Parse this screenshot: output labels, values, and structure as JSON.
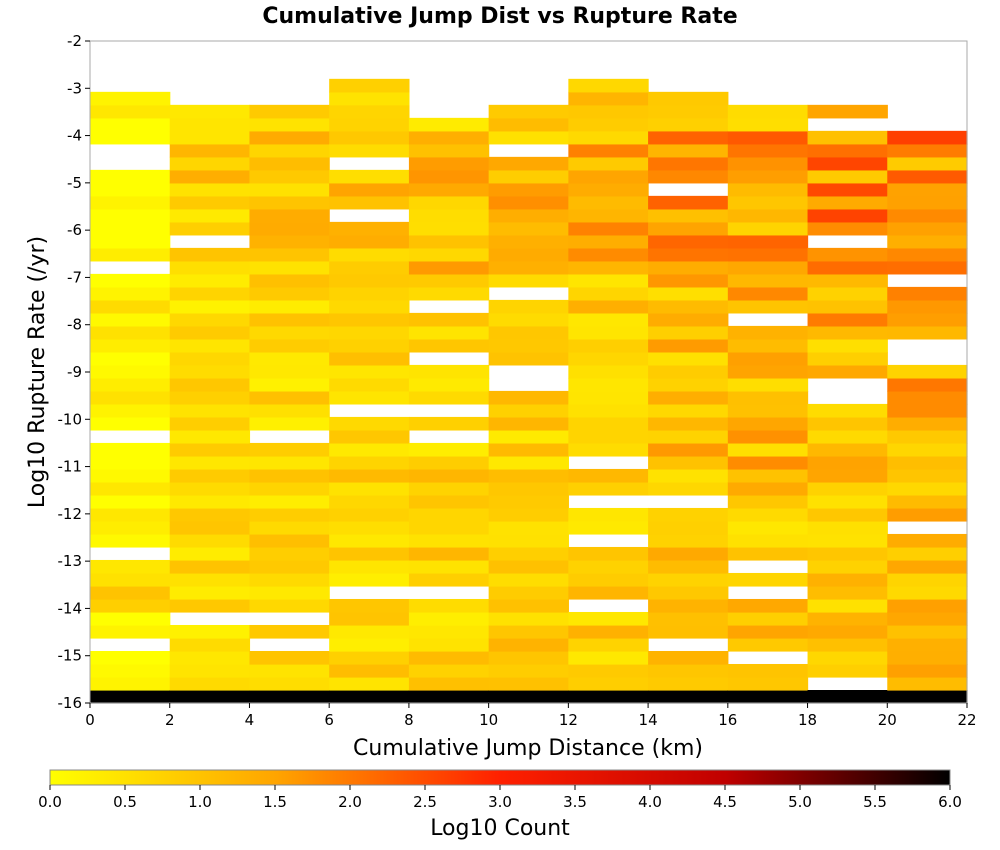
{
  "chart_data": {
    "type": "heatmap",
    "title": "Cumulative Jump Dist vs Rupture Rate",
    "xlabel": "Cumulative Jump Distance (km)",
    "ylabel": "Log10 Rupture Rate (/yr)",
    "xlim": [
      0,
      22
    ],
    "ylim": [
      -16,
      -2
    ],
    "x_bin_width": 2,
    "y_bin_height": 0.275,
    "x_ticks": [
      "0",
      "2",
      "4",
      "6",
      "8",
      "10",
      "12",
      "14",
      "16",
      "18",
      "20",
      "22"
    ],
    "y_ticks": [
      "-2",
      "-3",
      "-4",
      "-5",
      "-6",
      "-7",
      "-8",
      "-9",
      "-10",
      "-11",
      "-12",
      "-13",
      "-14",
      "-15",
      "-16"
    ],
    "grid": false,
    "colorbar": {
      "label": "Log10 Count",
      "range": [
        0.0,
        6.0
      ],
      "ticks": [
        "0.0",
        "0.5",
        "1.0",
        "1.5",
        "2.0",
        "2.5",
        "3.0",
        "3.5",
        "4.0",
        "4.5",
        "5.0",
        "5.5",
        "6.0"
      ],
      "colors": [
        "#ffff00",
        "#ffa500",
        "#ff2000",
        "#c00000",
        "#000000"
      ]
    },
    "colors": {
      "empty": "#ffffff",
      "frame": "#aaaaaa"
    },
    "columns": [
      {
        "x": [
          0,
          2
        ],
        "log10_count": [
          6.0,
          0.2,
          0.1,
          0.0,
          null,
          0.2,
          0.0,
          0.8,
          1.0,
          0.5,
          0.4,
          null,
          0.1,
          0.3,
          0.4,
          0.0,
          0.4,
          0.1,
          0.0,
          0.0,
          null,
          0.0,
          0.2,
          0.5,
          0.3,
          0.1,
          0.0,
          0.3,
          0.5,
          0.1,
          0.6,
          0.2,
          0.0,
          null,
          0.3,
          0.0,
          0.0,
          0.0,
          0.2,
          0.0,
          0.0,
          null,
          null,
          0.0,
          0.0,
          0.4,
          0.2,
          0.1,
          0.0,
          0.0,
          0.1,
          0.0,
          0.4,
          0.3,
          0.1,
          0.2,
          0.4,
          0.2,
          0.1,
          0.6,
          0.6,
          0.8,
          0.6,
          0.5,
          0.4,
          0.4,
          0.2,
          null,
          null,
          null,
          0.3,
          0.2,
          0.0,
          null,
          null,
          null,
          null,
          0.0,
          0.5,
          0.6,
          0.3,
          0.2,
          0.1,
          0.4,
          0.2,
          0.6,
          0.3,
          0.2,
          0.3,
          0.4,
          0.1,
          0.8,
          0.7,
          0.3,
          0.3,
          0.4,
          0.2,
          0.6,
          0.4,
          0.4,
          0.2,
          0.0,
          0.4,
          0.0,
          0.0,
          0.6,
          0.9,
          1.0,
          1.1,
          1.0,
          0.9,
          1.2,
          1.3,
          1.2,
          1.4,
          1.2,
          0.8,
          1.2,
          0.0,
          0.3,
          0.1,
          0.6,
          0.5,
          0.2,
          0.0,
          0.0,
          0.2,
          0.4,
          0.4,
          0.1,
          0.1,
          0.2,
          0.0,
          null,
          null,
          0.1,
          0.1,
          0.0,
          0.3,
          null,
          0.5,
          null,
          null,
          0.7,
          0.6,
          0.4,
          0.2,
          0.8,
          0.6,
          0.5,
          0.2,
          0.1,
          0.5,
          0.1,
          0.6,
          0.3,
          0.2,
          0.4,
          0.2,
          null,
          null,
          0.3,
          0.5,
          0.7,
          0.3,
          0.1,
          0.4,
          0.4,
          0.5,
          0.3,
          0.4,
          0.2,
          0.4,
          0.1,
          0.3,
          0.4,
          0.6,
          0.3,
          0.5,
          0.0,
          0.5,
          0.6,
          0.6,
          0.5,
          0.2,
          0.7,
          0.7,
          0.9,
          0.5,
          0.5,
          0.5,
          0.4,
          0.3,
          0.3,
          0.5,
          0.4,
          0.6,
          0.5,
          0.4,
          0.3
        ]
      }
    ]
  }
}
